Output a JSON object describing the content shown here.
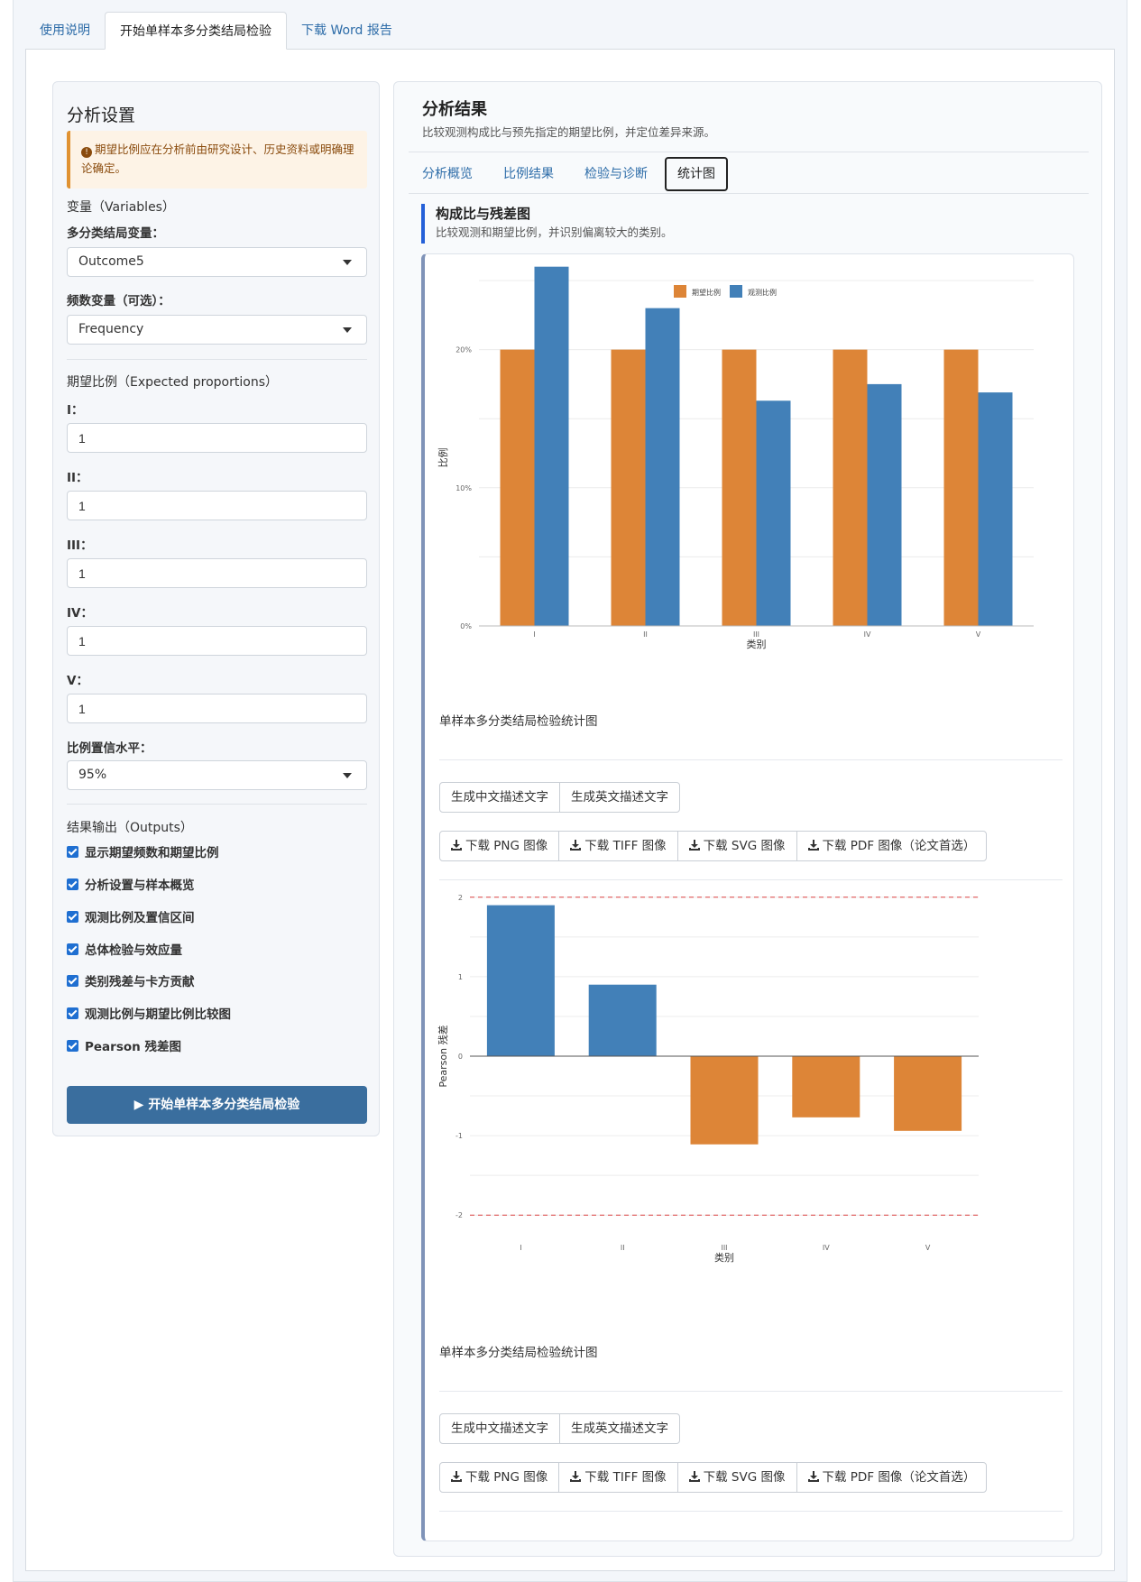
{
  "tabs": [
    "使用说明",
    "开始单样本多分类结局检验",
    "下载 Word 报告"
  ],
  "sidebar": {
    "title": "分析设置",
    "alert": "期望比例应在分析前由研究设计、历史资料或明确理论确定。",
    "variables_section": "变量（Variables）",
    "outcome_label": "多分类结局变量：",
    "outcome_value": "Outcome5",
    "freq_label": "频数变量（可选）：",
    "freq_value": "Frequency",
    "proportions_section": "期望比例（Expected proportions）",
    "props": [
      {
        "label": "I：",
        "value": "1"
      },
      {
        "label": "II：",
        "value": "1"
      },
      {
        "label": "III：",
        "value": "1"
      },
      {
        "label": "IV：",
        "value": "1"
      },
      {
        "label": "V：",
        "value": "1"
      }
    ],
    "ci_label": "比例置信水平：",
    "ci_value": "95%",
    "outputs_section": "结果输出（Outputs）",
    "outputs": [
      "显示期望频数和期望比例",
      "分析设置与样本概览",
      "观测比例及置信区间",
      "总体检验与效应量",
      "类别残差与卡方贡献",
      "观测比例与期望比例比较图",
      "Pearson 残差图"
    ],
    "run_button": "开始单样本多分类结局检验"
  },
  "main": {
    "title": "分析结果",
    "subtitle": "比较观测构成比与预先指定的期望比例，并定位差异来源。",
    "subtabs": [
      "分析概览",
      "比例结果",
      "检验与诊断",
      "统计图"
    ],
    "section_title": "构成比与残差图",
    "section_sub": "比较观测和期望比例，并识别偏离较大的类别。",
    "caption1": "单样本多分类结局检验统计图",
    "caption2": "单样本多分类结局检验统计图",
    "desc_buttons": [
      "生成中文描述文字",
      "生成英文描述文字"
    ],
    "download_buttons": [
      "下载 PNG 图像",
      "下载 TIFF 图像",
      "下载 SVG 图像",
      "下载 PDF 图像（论文首选）"
    ]
  },
  "colors": {
    "expected": "#dd8537",
    "observed": "#4280b8",
    "accent": "#2560d8"
  },
  "chart_data": [
    {
      "type": "bar",
      "categories": [
        "I",
        "II",
        "III",
        "IV",
        "V"
      ],
      "series": [
        {
          "name": "期望比例",
          "values": [
            20,
            20,
            20,
            20,
            20
          ]
        },
        {
          "name": "观测比例",
          "values": [
            26,
            23,
            16.3,
            17.5,
            16.9
          ]
        }
      ],
      "xlabel": "类别",
      "ylabel": "比例",
      "ylim": [
        0,
        25
      ],
      "yticks": [
        "0%",
        "10%",
        "20%"
      ],
      "legend": "top-center",
      "grid": true
    },
    {
      "type": "bar",
      "categories": [
        "I",
        "II",
        "III",
        "IV",
        "V"
      ],
      "values": [
        1.9,
        0.9,
        -1.11,
        -0.77,
        -0.94
      ],
      "xlabel": "类别",
      "ylabel": "Pearson 残差",
      "ylim": [
        -2.1,
        2.1
      ],
      "yticks": [
        "-2",
        "-1",
        "0",
        "1",
        "2"
      ],
      "reference_lines": [
        2,
        -2
      ],
      "grid": true
    }
  ]
}
